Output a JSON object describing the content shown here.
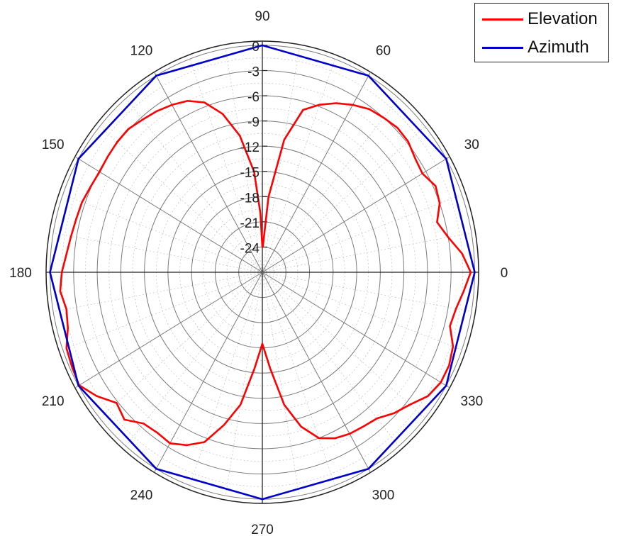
{
  "chart_data": {
    "type": "polar-line",
    "title": "",
    "angle_unit": "deg",
    "angular_ticks": [
      "0",
      "30",
      "60",
      "90",
      "120",
      "150",
      "180",
      "210",
      "240",
      "270",
      "300",
      "330"
    ],
    "angular_tick_values": [
      0,
      30,
      60,
      90,
      120,
      150,
      180,
      210,
      240,
      270,
      300,
      330
    ],
    "radial_ticks": [
      "0",
      "-3",
      "-6",
      "-9",
      "-12",
      "-15",
      "-18",
      "-21",
      "-24"
    ],
    "radial_tick_values": [
      0,
      -3,
      -6,
      -9,
      -12,
      -15,
      -18,
      -21,
      -24
    ],
    "rlim": [
      -27,
      0.5
    ],
    "grid": true,
    "legend_position": "top-right",
    "series": [
      {
        "name": "Elevation",
        "color": "#ff0000",
        "points": [
          [
            0,
            -0.5
          ],
          [
            5,
            -1.5
          ],
          [
            10,
            -3
          ],
          [
            15,
            -4
          ],
          [
            20,
            -3
          ],
          [
            25,
            -2.7
          ],
          [
            30,
            -3.5
          ],
          [
            35,
            -3.3
          ],
          [
            40,
            -2.8
          ],
          [
            45,
            -2.7
          ],
          [
            50,
            -3
          ],
          [
            55,
            -3.3
          ],
          [
            60,
            -4
          ],
          [
            65,
            -4.8
          ],
          [
            70,
            -5.8
          ],
          [
            75,
            -7
          ],
          [
            80,
            -11
          ],
          [
            85,
            -18
          ],
          [
            89,
            -24
          ],
          [
            90,
            -24
          ],
          [
            92,
            -20
          ],
          [
            95,
            -15
          ],
          [
            100,
            -10.5
          ],
          [
            105,
            -7.5
          ],
          [
            110,
            -5.5
          ],
          [
            115,
            -4.5
          ],
          [
            120,
            -4
          ],
          [
            125,
            -3.6
          ],
          [
            130,
            -3.3
          ],
          [
            135,
            -2.9
          ],
          [
            140,
            -2.9
          ],
          [
            145,
            -3
          ],
          [
            150,
            -3.1
          ],
          [
            155,
            -2.9
          ],
          [
            160,
            -2.6
          ],
          [
            165,
            -2.5
          ],
          [
            170,
            -2.3
          ],
          [
            175,
            -2
          ],
          [
            180,
            -1.5
          ],
          [
            185,
            -1.2
          ],
          [
            190,
            -1.7
          ],
          [
            195,
            -1.4
          ],
          [
            200,
            -0.5
          ],
          [
            205,
            -0.3
          ],
          [
            210,
            -0.1
          ],
          [
            215,
            -1.3
          ],
          [
            220,
            -2.8
          ],
          [
            225,
            -2.2
          ],
          [
            230,
            -3.5
          ],
          [
            235,
            -3.7
          ],
          [
            240,
            -3.5
          ],
          [
            245,
            -4.3
          ],
          [
            250,
            -5.5
          ],
          [
            255,
            -8.2
          ],
          [
            260,
            -11
          ],
          [
            265,
            -15.5
          ],
          [
            270,
            -18.5
          ],
          [
            275,
            -15.5
          ],
          [
            280,
            -11
          ],
          [
            285,
            -8
          ],
          [
            290,
            -6
          ],
          [
            295,
            -5.2
          ],
          [
            300,
            -4.8
          ],
          [
            305,
            -4.6
          ],
          [
            310,
            -4.3
          ],
          [
            315,
            -3.3
          ],
          [
            320,
            -2.5
          ],
          [
            325,
            -1.3
          ],
          [
            330,
            -0.8
          ],
          [
            335,
            -0.8
          ],
          [
            340,
            -1.2
          ],
          [
            345,
            -2.3
          ],
          [
            350,
            -2
          ],
          [
            355,
            -1.3
          ],
          [
            360,
            -0.5
          ]
        ]
      },
      {
        "name": "Azimuth",
        "color": "#0000cc",
        "points": [
          [
            0,
            0
          ],
          [
            30,
            0
          ],
          [
            60,
            0
          ],
          [
            90,
            0
          ],
          [
            120,
            0
          ],
          [
            150,
            0
          ],
          [
            180,
            0
          ],
          [
            210,
            0
          ],
          [
            240,
            0
          ],
          [
            270,
            0
          ],
          [
            300,
            0
          ],
          [
            330,
            0
          ],
          [
            360,
            0
          ]
        ]
      }
    ]
  }
}
